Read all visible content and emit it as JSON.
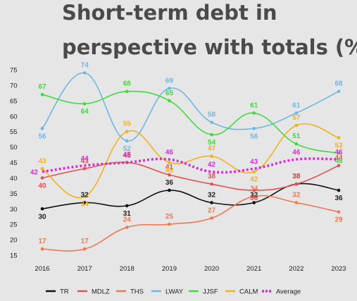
{
  "title_line1": "Short-term debt in",
  "title_line2": "perspective with totals (%)",
  "chart_data": {
    "type": "line",
    "title": "Short-term debt in perspective with totals (%)",
    "x": [
      "2016",
      "2017",
      "2018",
      "2019",
      "2020",
      "2021",
      "2022",
      "2023"
    ],
    "yticks": [
      15,
      20,
      25,
      30,
      35,
      40,
      45,
      50,
      55,
      60,
      65,
      70,
      75
    ],
    "ylim": [
      13,
      77
    ],
    "grid": false,
    "legend_position": "bottom",
    "series": [
      {
        "name": "TR",
        "color": "#111111",
        "values": [
          30,
          32,
          31,
          36,
          32,
          32,
          38,
          36
        ],
        "dash": false
      },
      {
        "name": "MDLZ",
        "color": "#e05252",
        "values": [
          40,
          43,
          45,
          41,
          38,
          36,
          38,
          44
        ],
        "dash": false
      },
      {
        "name": "THS",
        "color": "#f07850",
        "values": [
          17,
          17,
          24,
          25,
          27,
          34,
          32,
          29
        ],
        "dash": false
      },
      {
        "name": "LWAY",
        "color": "#6fb7e3",
        "values": [
          56,
          74,
          52,
          69,
          58,
          56,
          61,
          68
        ],
        "dash": false
      },
      {
        "name": "JJSF",
        "color": "#3ddc3d",
        "values": [
          67,
          64,
          68,
          65,
          54,
          61,
          51,
          48
        ],
        "dash": false
      },
      {
        "name": "CALM",
        "color": "#f2b11c",
        "values": [
          43,
          34,
          55,
          45,
          47,
          42,
          57,
          53
        ],
        "dash": false
      },
      {
        "name": "Average",
        "color": "#d42fd4",
        "values": [
          42,
          44,
          45,
          46,
          42,
          43,
          46,
          46
        ],
        "dash": true
      }
    ]
  }
}
